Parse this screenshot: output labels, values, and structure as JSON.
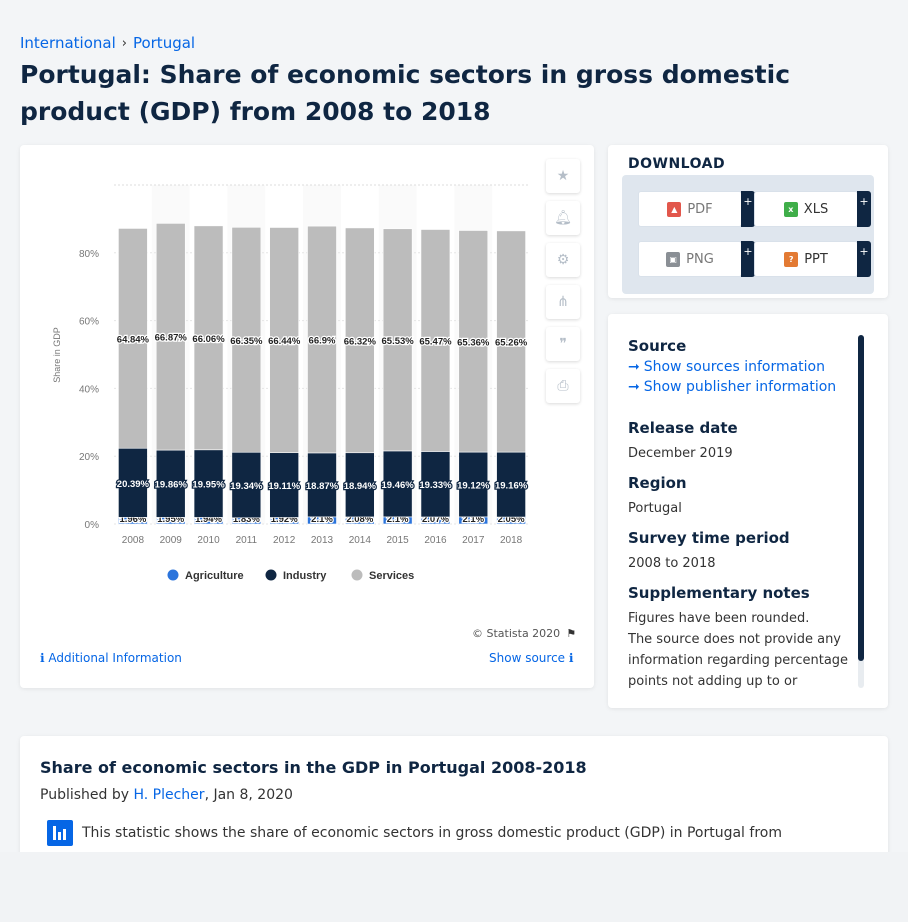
{
  "breadcrumb": {
    "items": [
      "International",
      "Portugal"
    ],
    "separator": "›"
  },
  "page": {
    "title": "Portugal: Share of economic sectors in gross domestic product (GDP) from 2008 to 2018"
  },
  "chart_data": {
    "type": "bar",
    "stacked": true,
    "categories": [
      "2008",
      "2009",
      "2010",
      "2011",
      "2012",
      "2013",
      "2014",
      "2015",
      "2016",
      "2017",
      "2018"
    ],
    "series": [
      {
        "name": "Agriculture",
        "color": "#2b74dc",
        "values": [
          1.96,
          1.95,
          1.94,
          1.83,
          1.92,
          2.1,
          2.08,
          2.1,
          2.07,
          2.1,
          2.05
        ],
        "labels": [
          "1.96%",
          "1.95%",
          "1.94%",
          "1.83%",
          "1.92%",
          "2.1%",
          "2.08%",
          "2.1%",
          "2.07%",
          "2.1%",
          "2.05%"
        ]
      },
      {
        "name": "Industry",
        "color": "#0f2642",
        "values": [
          20.39,
          19.86,
          19.95,
          19.34,
          19.11,
          18.87,
          18.94,
          19.46,
          19.33,
          19.12,
          19.16
        ],
        "labels": [
          "20.39%",
          "19.86%",
          "19.95%",
          "19.34%",
          "19.11%",
          "18.87%",
          "18.94%",
          "19.46%",
          "19.33%",
          "19.12%",
          "19.16%"
        ]
      },
      {
        "name": "Services",
        "color": "#bcbcbc",
        "values": [
          64.84,
          66.87,
          66.06,
          66.35,
          66.44,
          66.9,
          66.32,
          65.53,
          65.47,
          65.36,
          65.26
        ],
        "labels": [
          "64.84%",
          "66.87%",
          "66.06%",
          "66.35%",
          "66.44%",
          "66.9%",
          "66.32%",
          "65.53%",
          "65.47%",
          "65.36%",
          "65.26%"
        ]
      }
    ],
    "ylabel": "Share in GDP",
    "ylim": [
      0,
      100
    ],
    "yticks": [
      "0%",
      "20%",
      "40%",
      "60%",
      "80%"
    ],
    "ytick_values": [
      0,
      20,
      40,
      60,
      80
    ],
    "grid": true,
    "legend": "bottom-center",
    "copyright": "© Statista 2020"
  },
  "chart_footer": {
    "additional_info": "Additional Information",
    "show_source": "Show source"
  },
  "tools": {
    "icons": [
      "star-icon",
      "bell-icon",
      "gear-icon",
      "share-icon",
      "quote-icon",
      "print-icon"
    ]
  },
  "download": {
    "title": "DOWNLOAD",
    "buttons": [
      {
        "label": "PDF",
        "color": "#e2574c"
      },
      {
        "label": "XLS",
        "color": "#3fae49"
      },
      {
        "label": "PNG",
        "color": "#8a8f95"
      },
      {
        "label": "PPT",
        "color": "#e37a33"
      }
    ],
    "plus": "+"
  },
  "info": {
    "source_h": "Source",
    "show_sources": "Show sources information",
    "show_publisher": "Show publisher information",
    "release_h": "Release date",
    "release_v": "December 2019",
    "region_h": "Region",
    "region_v": "Portugal",
    "survey_h": "Survey time period",
    "survey_v": "2008 to 2018",
    "supp_h": "Supplementary notes",
    "supp_v1": "Figures have been rounded.",
    "supp_v2": "The source does not provide any information regarding percentage points not adding up to or"
  },
  "description": {
    "title": "Share of economic sectors in the GDP in Portugal 2008-2018",
    "published_prefix": "Published by ",
    "author": "H. Plecher",
    "date": ", Jan 8, 2020",
    "text": "This statistic shows the share of economic sectors in gross domestic product (GDP) in Portugal from"
  }
}
